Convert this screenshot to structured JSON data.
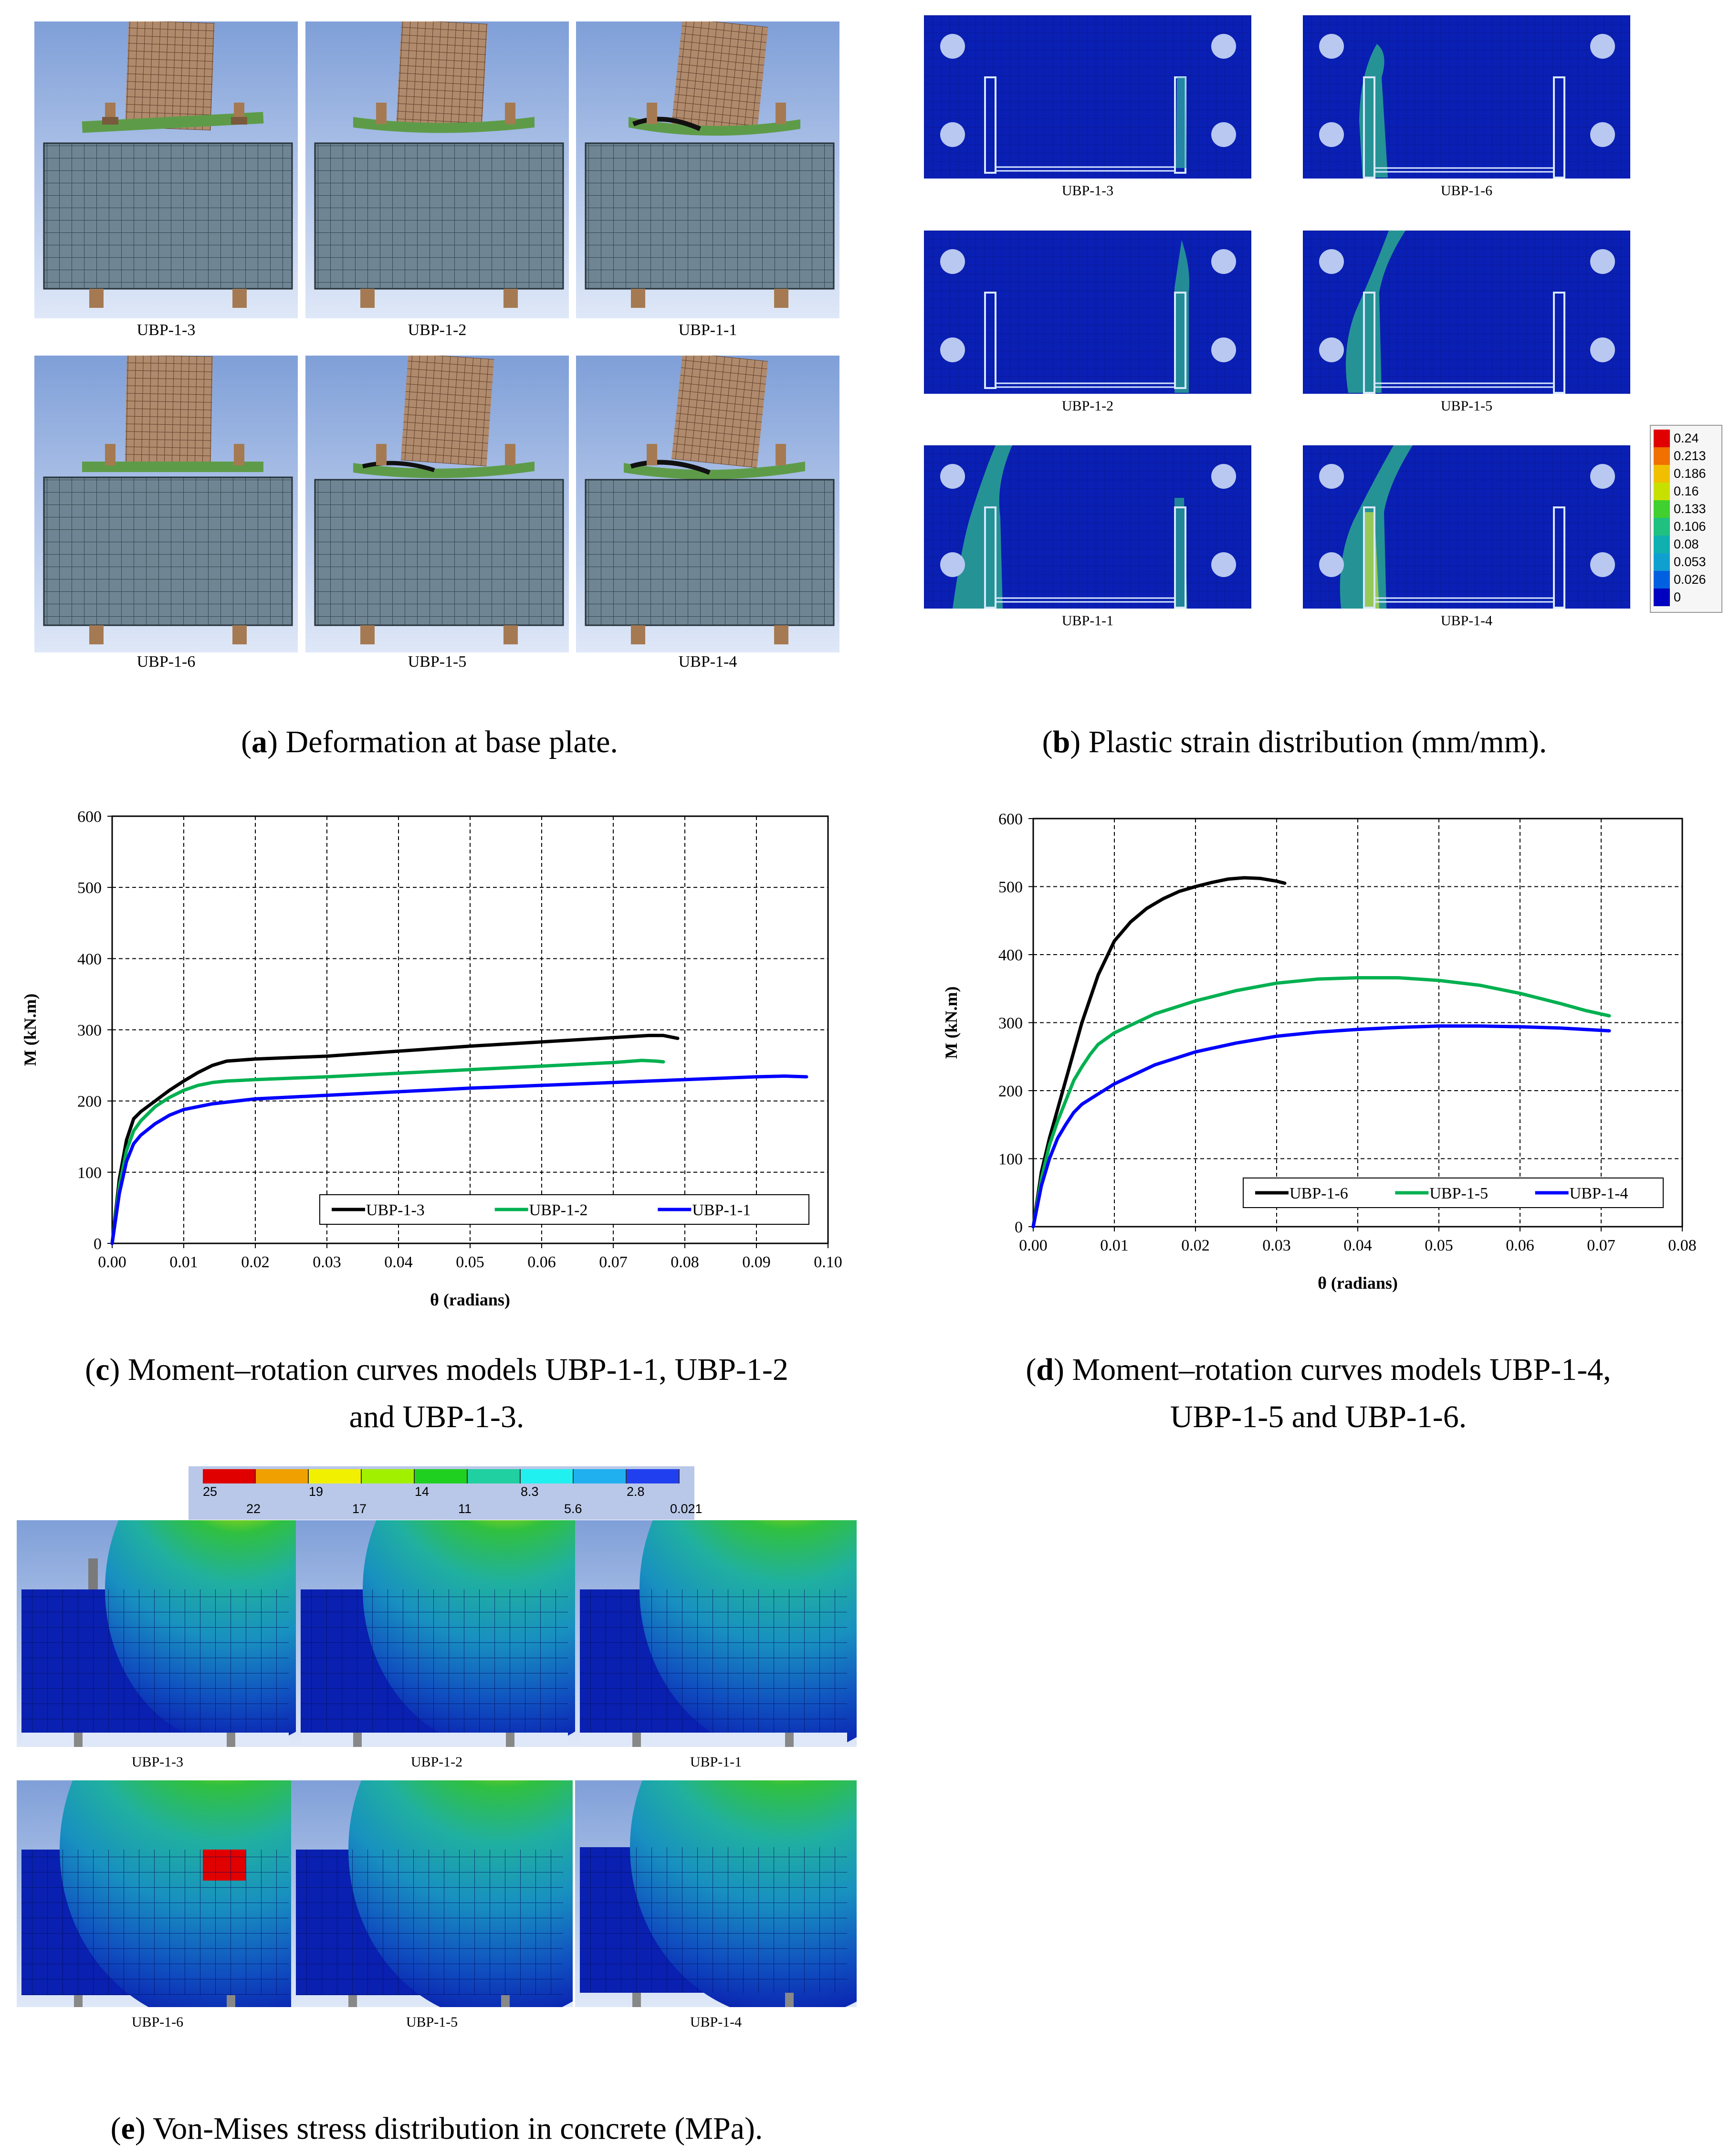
{
  "panel_a": {
    "caption_letter": "a",
    "caption_text": ") Deformation at base plate.",
    "labels": [
      "UBP-1-3",
      "UBP-1-2",
      "UBP-1-1",
      "UBP-1-6",
      "UBP-1-5",
      "UBP-1-4"
    ]
  },
  "panel_b": {
    "caption_letter": "b",
    "caption_text": ") Plastic strain distribution (mm/mm).",
    "labels": [
      "UBP-1-3",
      "UBP-1-6",
      "UBP-1-2",
      "UBP-1-5",
      "UBP-1-1",
      "UBP-1-4"
    ],
    "legend": [
      "0.24",
      "0.213",
      "0.186",
      "0.16",
      "0.133",
      "0.106",
      "0.08",
      "0.053",
      "0.026",
      "0"
    ],
    "legend_colors": [
      "#e00000",
      "#f07000",
      "#f0c000",
      "#c8e000",
      "#40d030",
      "#20c080",
      "#10b0b0",
      "#10a0d0",
      "#0060e0",
      "#0000c0"
    ]
  },
  "panel_e": {
    "caption_letter": "e",
    "caption_text": ") Von-Mises stress distribution in concrete (MPa).",
    "labels": [
      "UBP-1-3",
      "UBP-1-2",
      "UBP-1-1",
      "UBP-1-6",
      "UBP-1-5",
      "UBP-1-4"
    ],
    "scale_top": [
      "25",
      "19",
      "14",
      "8.3",
      "2.8"
    ],
    "scale_bottom": [
      "22",
      "17",
      "11",
      "5.6",
      "0.021"
    ],
    "scale_colors": [
      "#e00000",
      "#f0a000",
      "#f0f000",
      "#a0f000",
      "#20d020",
      "#20d0a0",
      "#20f0f0",
      "#20b0f0",
      "#2040f0"
    ]
  },
  "chart_data": [
    {
      "type": "line",
      "caption_letter": "c",
      "caption_line1": ") Moment–rotation curves models UBP-1-1, UBP-1-2",
      "caption_line2": "and UBP-1-3.",
      "xlabel": "θ (radians)",
      "ylabel": "M (kN.m)",
      "xlim": [
        0,
        0.1
      ],
      "ylim": [
        0,
        600
      ],
      "xticks": [
        "0.00",
        "0.01",
        "0.02",
        "0.03",
        "0.04",
        "0.05",
        "0.06",
        "0.07",
        "0.08",
        "0.09",
        "0.10"
      ],
      "yticks": [
        "0",
        "100",
        "200",
        "300",
        "400",
        "500",
        "600"
      ],
      "grid": true,
      "legend_position": "bottom-right",
      "series": [
        {
          "name": "UBP-1-3",
          "color": "#000000",
          "points": [
            [
              0,
              0
            ],
            [
              0.001,
              90
            ],
            [
              0.002,
              145
            ],
            [
              0.003,
              175
            ],
            [
              0.004,
              185
            ],
            [
              0.006,
              200
            ],
            [
              0.008,
              215
            ],
            [
              0.01,
              228
            ],
            [
              0.012,
              240
            ],
            [
              0.014,
              250
            ],
            [
              0.016,
              256
            ],
            [
              0.02,
              259
            ],
            [
              0.03,
              263
            ],
            [
              0.04,
              270
            ],
            [
              0.05,
              277
            ],
            [
              0.06,
              283
            ],
            [
              0.07,
              289
            ],
            [
              0.075,
              292
            ],
            [
              0.077,
              292
            ],
            [
              0.079,
              288
            ]
          ]
        },
        {
          "name": "UBP-1-2",
          "color": "#00b050",
          "points": [
            [
              0,
              0
            ],
            [
              0.001,
              80
            ],
            [
              0.002,
              130
            ],
            [
              0.003,
              158
            ],
            [
              0.004,
              172
            ],
            [
              0.006,
              192
            ],
            [
              0.008,
              205
            ],
            [
              0.01,
              215
            ],
            [
              0.012,
              222
            ],
            [
              0.014,
              226
            ],
            [
              0.016,
              228
            ],
            [
              0.02,
              230
            ],
            [
              0.03,
              234
            ],
            [
              0.04,
              239
            ],
            [
              0.05,
              244
            ],
            [
              0.06,
              249
            ],
            [
              0.07,
              254
            ],
            [
              0.074,
              257
            ],
            [
              0.076,
              256
            ],
            [
              0.077,
              255
            ]
          ]
        },
        {
          "name": "UBP-1-1",
          "color": "#0000ff",
          "points": [
            [
              0,
              0
            ],
            [
              0.001,
              70
            ],
            [
              0.002,
              115
            ],
            [
              0.003,
              140
            ],
            [
              0.004,
              152
            ],
            [
              0.006,
              168
            ],
            [
              0.008,
              180
            ],
            [
              0.01,
              188
            ],
            [
              0.014,
              196
            ],
            [
              0.02,
              203
            ],
            [
              0.03,
              208
            ],
            [
              0.04,
              213
            ],
            [
              0.05,
              218
            ],
            [
              0.06,
              222
            ],
            [
              0.07,
              226
            ],
            [
              0.08,
              230
            ],
            [
              0.09,
              234
            ],
            [
              0.094,
              235
            ],
            [
              0.097,
              234
            ]
          ]
        }
      ]
    },
    {
      "type": "line",
      "caption_letter": "d",
      "caption_line1": ") Moment–rotation curves models UBP-1-4,",
      "caption_line2": "UBP-1-5 and UBP-1-6.",
      "xlabel": "θ (radians)",
      "ylabel": "M (kN.m)",
      "xlim": [
        0,
        0.08
      ],
      "ylim": [
        0,
        600
      ],
      "xticks": [
        "0.00",
        "0.01",
        "0.02",
        "0.03",
        "0.04",
        "0.05",
        "0.06",
        "0.07",
        "0.08"
      ],
      "yticks": [
        "0",
        "100",
        "200",
        "300",
        "400",
        "500",
        "600"
      ],
      "grid": true,
      "legend_position": "bottom-right",
      "series": [
        {
          "name": "UBP-1-6",
          "color": "#000000",
          "points": [
            [
              0,
              0
            ],
            [
              0.001,
              80
            ],
            [
              0.002,
              130
            ],
            [
              0.004,
              215
            ],
            [
              0.006,
              300
            ],
            [
              0.008,
              370
            ],
            [
              0.01,
              420
            ],
            [
              0.012,
              448
            ],
            [
              0.014,
              468
            ],
            [
              0.016,
              482
            ],
            [
              0.018,
              493
            ],
            [
              0.02,
              500
            ],
            [
              0.022,
              506
            ],
            [
              0.024,
              511
            ],
            [
              0.026,
              513
            ],
            [
              0.028,
              512
            ],
            [
              0.03,
              508
            ],
            [
              0.031,
              505
            ]
          ]
        },
        {
          "name": "UBP-1-5",
          "color": "#00b050",
          "points": [
            [
              0,
              0
            ],
            [
              0.001,
              70
            ],
            [
              0.002,
              120
            ],
            [
              0.003,
              155
            ],
            [
              0.004,
              185
            ],
            [
              0.005,
              215
            ],
            [
              0.006,
              235
            ],
            [
              0.007,
              253
            ],
            [
              0.008,
              268
            ],
            [
              0.01,
              285
            ],
            [
              0.015,
              313
            ],
            [
              0.02,
              332
            ],
            [
              0.025,
              347
            ],
            [
              0.03,
              358
            ],
            [
              0.035,
              364
            ],
            [
              0.04,
              366
            ],
            [
              0.045,
              366
            ],
            [
              0.05,
              362
            ],
            [
              0.055,
              355
            ],
            [
              0.06,
              343
            ],
            [
              0.065,
              328
            ],
            [
              0.068,
              318
            ],
            [
              0.071,
              310
            ]
          ]
        },
        {
          "name": "UBP-1-4",
          "color": "#0000ff",
          "points": [
            [
              0,
              0
            ],
            [
              0.001,
              60
            ],
            [
              0.002,
              100
            ],
            [
              0.003,
              130
            ],
            [
              0.004,
              150
            ],
            [
              0.005,
              168
            ],
            [
              0.006,
              180
            ],
            [
              0.008,
              195
            ],
            [
              0.01,
              210
            ],
            [
              0.015,
              238
            ],
            [
              0.02,
              257
            ],
            [
              0.025,
              270
            ],
            [
              0.03,
              280
            ],
            [
              0.035,
              286
            ],
            [
              0.04,
              290
            ],
            [
              0.045,
              293
            ],
            [
              0.05,
              295
            ],
            [
              0.055,
              295
            ],
            [
              0.06,
              294
            ],
            [
              0.065,
              292
            ],
            [
              0.071,
              288
            ]
          ]
        }
      ]
    }
  ]
}
